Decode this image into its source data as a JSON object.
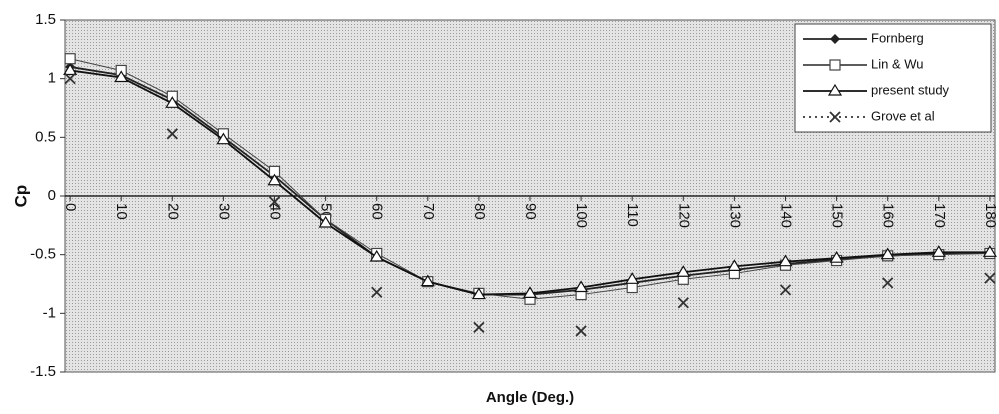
{
  "chart_data": {
    "type": "line",
    "x": [
      0,
      10,
      20,
      30,
      40,
      50,
      60,
      70,
      80,
      90,
      100,
      110,
      120,
      130,
      140,
      150,
      160,
      170,
      180
    ],
    "xlabel": "Angle (Deg.)",
    "ylabel": "Cp",
    "xlim": [
      -1,
      181
    ],
    "xticks": [
      0,
      10,
      20,
      30,
      40,
      50,
      60,
      70,
      80,
      90,
      100,
      110,
      120,
      130,
      140,
      150,
      160,
      170,
      180
    ],
    "ylim": [
      -1.5,
      1.5
    ],
    "yticks": [
      -1.5,
      -1,
      -0.5,
      0,
      0.5,
      1,
      1.5
    ],
    "grid": false,
    "legend": "upper right",
    "series": [
      {
        "name": "Fornberg",
        "color": "#222222",
        "marker": "diamond",
        "line_style": "solid",
        "connect": true,
        "values": [
          1.1,
          1.03,
          0.82,
          0.5,
          0.17,
          -0.2,
          -0.52,
          -0.73,
          -0.84,
          -0.84,
          -0.8,
          -0.74,
          -0.68,
          -0.63,
          -0.58,
          -0.54,
          -0.51,
          -0.49,
          -0.48
        ]
      },
      {
        "name": "Lin & Wu",
        "color": "#444444",
        "marker": "square",
        "line_style": "solid",
        "connect": true,
        "values": [
          1.17,
          1.07,
          0.85,
          0.53,
          0.21,
          -0.2,
          -0.49,
          -0.73,
          -0.83,
          -0.88,
          -0.84,
          -0.78,
          -0.71,
          -0.66,
          -0.59,
          -0.55,
          -0.51,
          -0.5,
          -0.49
        ]
      },
      {
        "name": "present study",
        "color": "#111111",
        "marker": "triangle",
        "line_style": "solid",
        "connect": true,
        "values": [
          1.07,
          1.01,
          0.79,
          0.48,
          0.13,
          -0.23,
          -0.52,
          -0.73,
          -0.84,
          -0.83,
          -0.78,
          -0.71,
          -0.65,
          -0.6,
          -0.56,
          -0.53,
          -0.5,
          -0.48,
          -0.48
        ]
      },
      {
        "name": "Grove et al",
        "color": "#333333",
        "marker": "x",
        "line_style": "dotted",
        "connect": false,
        "values": [
          1.0,
          null,
          0.53,
          null,
          -0.05,
          null,
          -0.82,
          null,
          -1.12,
          null,
          -1.15,
          null,
          -0.91,
          null,
          -0.8,
          null,
          -0.74,
          null,
          -0.7
        ]
      }
    ]
  }
}
